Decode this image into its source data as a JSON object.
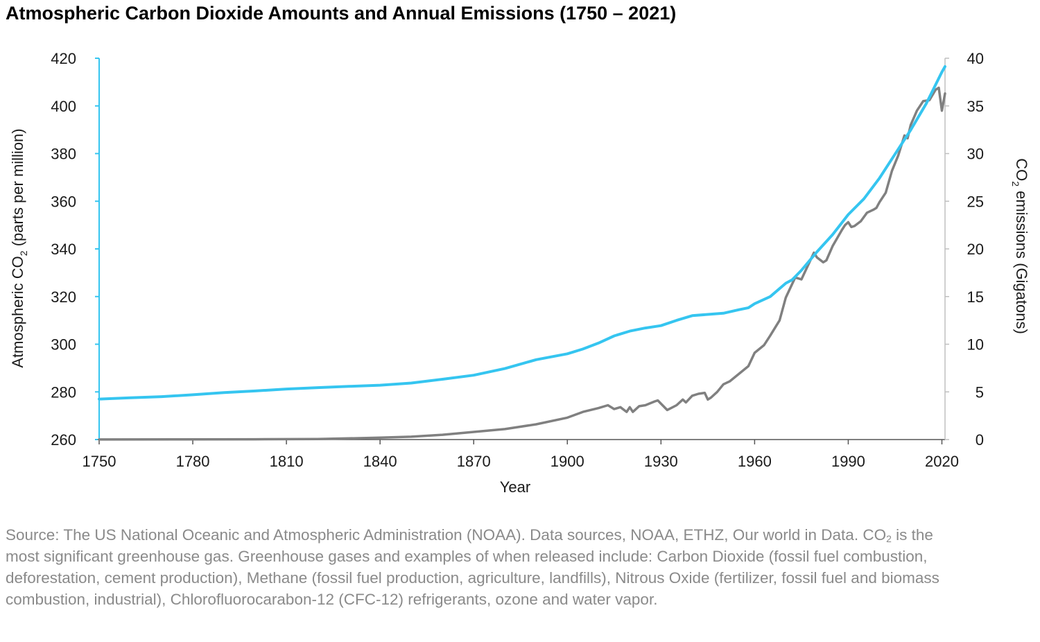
{
  "title": "Atmospheric Carbon Dioxide Amounts and Annual Emissions (1750 – 2021)",
  "source": {
    "part1": "Source: The US National Oceanic and Atmospheric Administration (NOAA). Data sources, NOAA, ETHZ, Our world in Data. CO",
    "sub": "2",
    "part2": " is the most significant greenhouse gas. Greenhouse gases and examples of when released include: Carbon Dioxide (fossil fuel combustion, deforestation, cement production), Methane (fossil fuel production, agriculture, landfills), Nitrous Oxide (fertilizer, fossil fuel and biomass combustion, industrial), Chlorofluorocarabon-12 (CFC-12) refrigerants, ozone and water vapor."
  },
  "colors": {
    "co2": "#35c5f0",
    "emissions": "#808080",
    "axis_left": "#35c5f0",
    "axis_right": "#bfbfbf"
  },
  "chart_data": {
    "type": "line",
    "xlabel": "Year",
    "ylabel_left": {
      "pre": "Atmospheric CO",
      "sub": "2",
      "post": " (parts per million)"
    },
    "ylabel_right": {
      "pre": "CO",
      "sub": "2",
      "post": " emissions (Gigatons)"
    },
    "xlim": [
      1750,
      2021
    ],
    "ylim_left": [
      260,
      420
    ],
    "ylim_right": [
      0,
      40
    ],
    "xticks": [
      1750,
      1780,
      1810,
      1840,
      1870,
      1900,
      1930,
      1960,
      1990,
      2020
    ],
    "yticks_left": [
      260,
      280,
      300,
      320,
      340,
      360,
      380,
      400,
      420
    ],
    "yticks_right": [
      0,
      5,
      10,
      15,
      20,
      25,
      30,
      35,
      40
    ],
    "grid": false,
    "series": [
      {
        "axis": "left",
        "x": [
          1750,
          1760,
          1770,
          1780,
          1790,
          1800,
          1810,
          1820,
          1830,
          1840,
          1850,
          1860,
          1870,
          1880,
          1890,
          1900,
          1905,
          1910,
          1915,
          1920,
          1925,
          1930,
          1935,
          1940,
          1945,
          1950,
          1955,
          1958,
          1960,
          1965,
          1970,
          1972,
          1975,
          1980,
          1985,
          1990,
          1995,
          2000,
          2005,
          2010,
          2015,
          2020,
          2021
        ],
        "values": [
          277,
          277.5,
          278,
          278.8,
          279.7,
          280.4,
          281.2,
          281.8,
          282.3,
          282.8,
          283.7,
          285.3,
          287,
          289.8,
          293.5,
          296,
          298,
          300.5,
          303.5,
          305.5,
          306.8,
          307.8,
          310,
          312,
          312.5,
          313,
          314.5,
          315.3,
          317,
          320,
          325.6,
          327,
          331,
          338.8,
          346,
          354.4,
          361,
          369.7,
          379.8,
          389.9,
          401,
          414.2,
          416.5
        ]
      },
      {
        "axis": "right",
        "x": [
          1750,
          1800,
          1820,
          1840,
          1850,
          1860,
          1870,
          1880,
          1890,
          1900,
          1905,
          1910,
          1913,
          1915,
          1917,
          1919,
          1920,
          1921,
          1923,
          1925,
          1928,
          1929,
          1932,
          1935,
          1937,
          1938,
          1940,
          1942,
          1944,
          1945,
          1946,
          1948,
          1950,
          1952,
          1955,
          1958,
          1960,
          1963,
          1965,
          1968,
          1970,
          1973,
          1974,
          1975,
          1977,
          1979,
          1980,
          1982,
          1983,
          1985,
          1988,
          1989,
          1990,
          1991,
          1992,
          1994,
          1996,
          1998,
          1999,
          2000,
          2002,
          2004,
          2006,
          2008,
          2009,
          2010,
          2012,
          2014,
          2016,
          2018,
          2019,
          2020,
          2021
        ],
        "values": [
          0.01,
          0.03,
          0.05,
          0.2,
          0.3,
          0.5,
          0.8,
          1.1,
          1.6,
          2.3,
          2.9,
          3.3,
          3.6,
          3.2,
          3.4,
          2.9,
          3.4,
          2.9,
          3.5,
          3.6,
          4.0,
          4.1,
          3.1,
          3.6,
          4.2,
          3.9,
          4.6,
          4.8,
          4.9,
          4.2,
          4.4,
          5.0,
          5.8,
          6.1,
          6.9,
          7.7,
          9.1,
          9.9,
          10.9,
          12.5,
          14.9,
          17.0,
          16.9,
          16.8,
          18.2,
          19.6,
          19.1,
          18.6,
          18.8,
          20.3,
          22.0,
          22.5,
          22.8,
          22.3,
          22.4,
          22.9,
          23.8,
          24.1,
          24.3,
          24.9,
          25.9,
          28.2,
          29.8,
          31.9,
          31.6,
          33.0,
          34.5,
          35.5,
          35.6,
          36.7,
          36.9,
          34.5,
          36.3
        ]
      }
    ]
  }
}
